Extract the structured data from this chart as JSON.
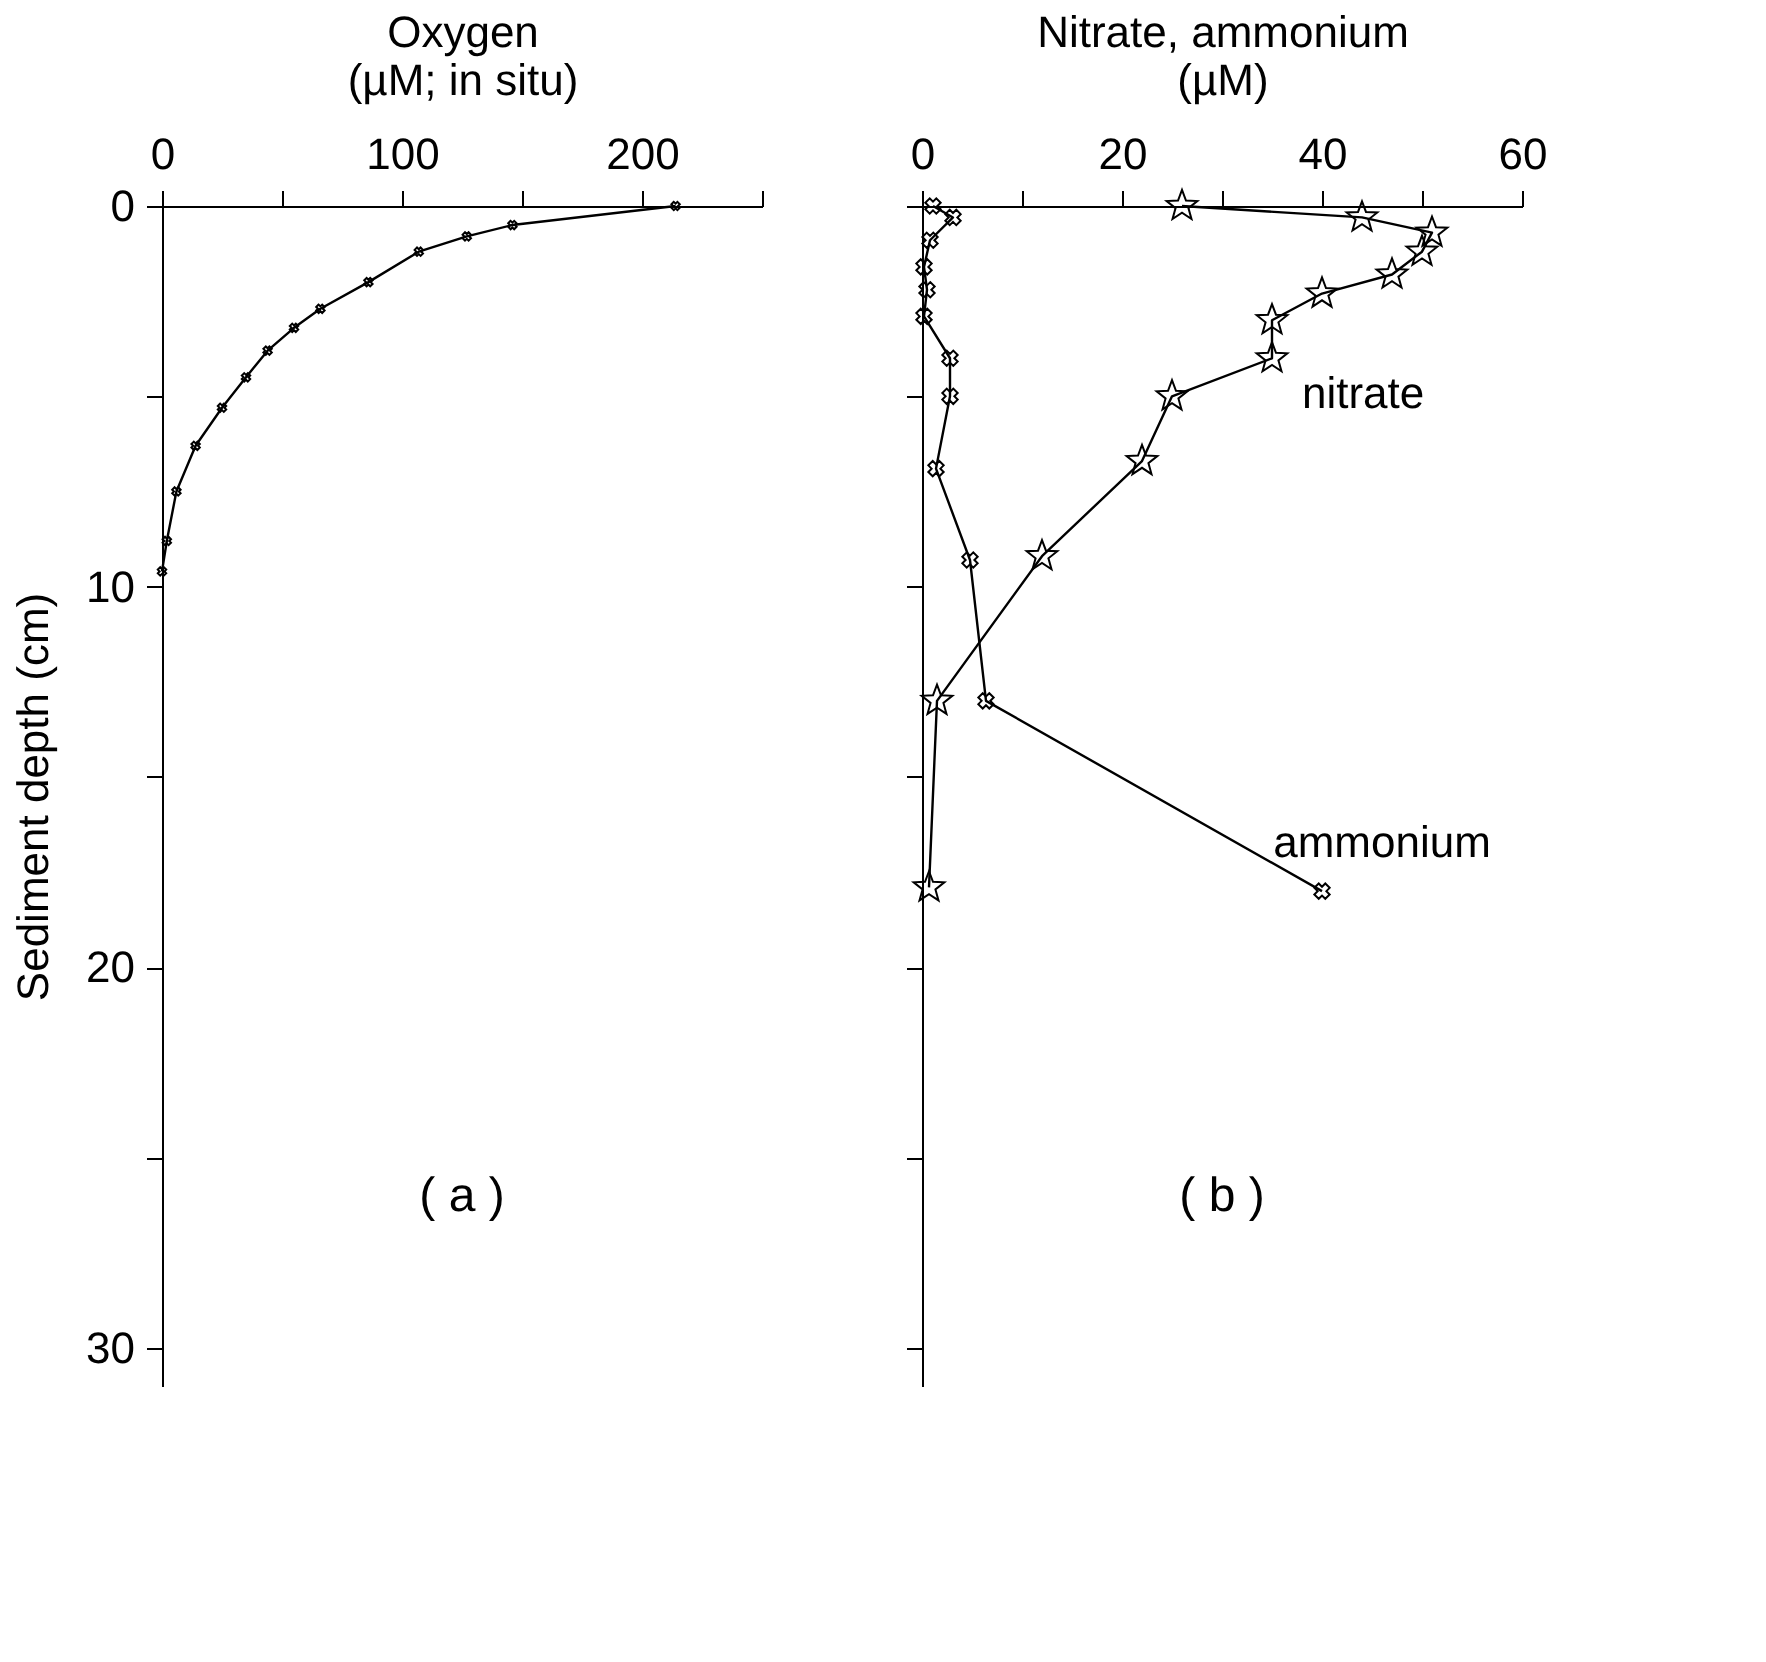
{
  "chart_data": [
    {
      "type": "line",
      "orientation": "horizontal",
      "xlabel": "Oxygen\n(µM; in situ)",
      "ylabel": "Sediment depth (cm)",
      "marker": "cross",
      "color": "#000000",
      "line_style": "solid",
      "x": [
        0,
        0.5,
        0.8,
        1.2,
        2.0,
        2.7,
        3.2,
        3.8,
        4.5,
        5.3,
        6.3,
        7.5,
        8.8,
        9.6
      ],
      "values": [
        214,
        146,
        127,
        107,
        86,
        66,
        55,
        44,
        35,
        25,
        14,
        6,
        2,
        0
      ],
      "xlim": [
        0,
        250
      ],
      "xticks": [
        0,
        {
          "value": 50,
          "label": null
        },
        100,
        {
          "value": 150,
          "label": null
        },
        200,
        {
          "value": 250,
          "label": null
        }
      ],
      "ylim": [
        31,
        0
      ],
      "yticks": [
        0,
        {
          "value": 5,
          "label": null
        },
        10,
        {
          "value": 15,
          "label": null
        },
        20,
        {
          "value": 25,
          "label": null
        },
        30
      ],
      "annotations": [
        "( a )"
      ]
    },
    {
      "type": "line",
      "orientation": "horizontal",
      "xlabel": "Nitrate, ammonium\n(µM)",
      "tick_labels": "x",
      "line_style": "solid",
      "series": [
        {
          "name": "nitrate",
          "color": "#000000",
          "marker": "star",
          "x": [
            0,
            0.3,
            0.7,
            1.2,
            1.8,
            2.3,
            3.0,
            4.0,
            5.0,
            6.7,
            9.2,
            13.0,
            17.9
          ],
          "values": [
            26,
            44,
            51,
            50,
            47,
            40,
            35,
            35,
            25,
            22,
            12,
            1.5,
            0.7
          ]
        },
        {
          "name": "ammonium",
          "color": "#000000",
          "marker": "cross",
          "x": [
            0,
            0.3,
            0.9,
            1.6,
            2.2,
            2.9,
            4.0,
            5.0,
            6.9,
            9.3,
            13.0,
            18.0
          ],
          "values": [
            1.1,
            3.1,
            0.8,
            0.2,
            0.5,
            0.2,
            2.8,
            2.8,
            1.4,
            4.8,
            6.4,
            40
          ]
        }
      ],
      "xlim": [
        0,
        60
      ],
      "xticks": [
        0,
        {
          "value": 10,
          "label": null
        },
        20,
        {
          "value": 30,
          "label": null
        },
        40,
        {
          "value": 50,
          "label": null
        },
        60
      ],
      "ylim": [
        31,
        0
      ],
      "yticks": [
        0,
        {
          "value": 5,
          "label": null
        },
        {
          "value": 10,
          "label": null
        },
        {
          "value": 15,
          "label": null
        },
        {
          "value": 20,
          "label": null
        },
        {
          "value": 25,
          "label": null
        },
        {
          "value": 30,
          "label": null
        }
      ],
      "annotations": [
        "( b )"
      ]
    }
  ]
}
